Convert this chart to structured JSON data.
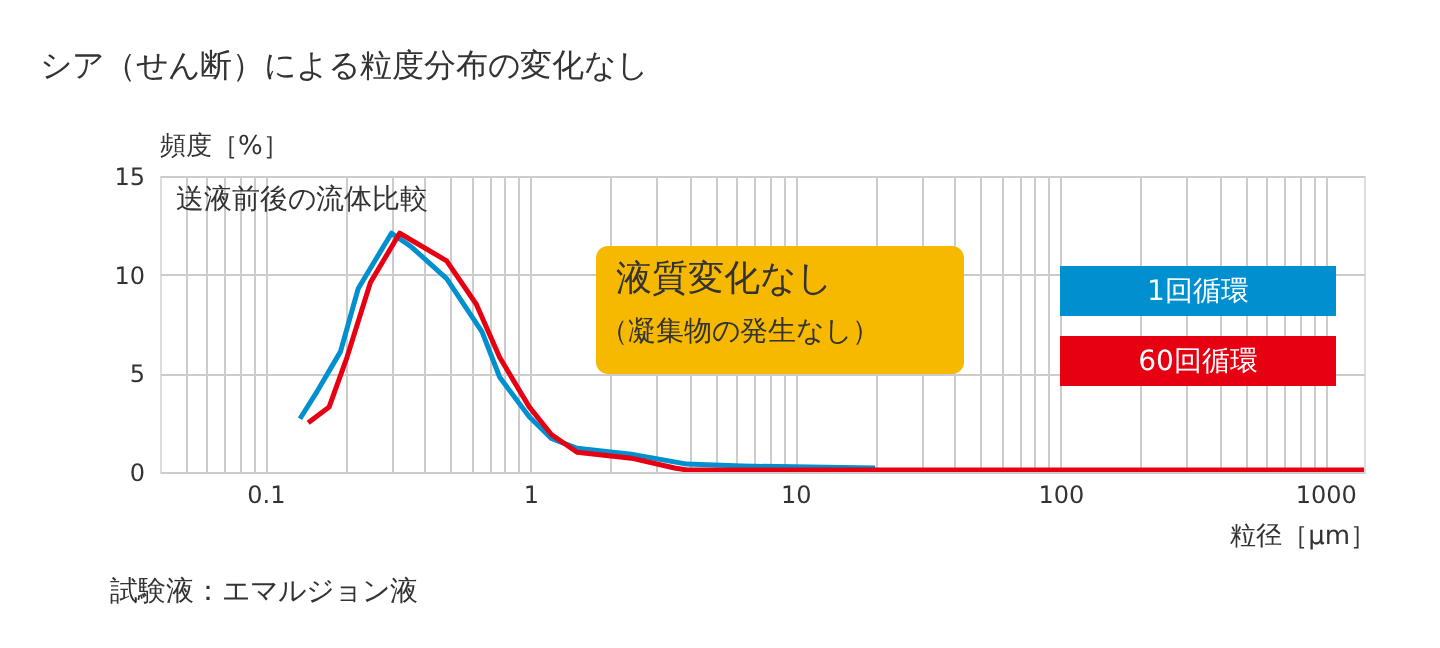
{
  "chart_data": {
    "type": "line",
    "title": "シア（せん断）による粒度分布の変化なし",
    "xlabel": "粒径［μm］",
    "ylabel": "頻度［%］",
    "log": "x",
    "xlim": [
      0.04,
      1400
    ],
    "ylim": [
      0,
      15
    ],
    "yticks": [
      0,
      5,
      10,
      15
    ],
    "xticks": [
      {
        "value": 0.05,
        "label": null
      },
      {
        "value": 0.06,
        "label": null
      },
      {
        "value": 0.07,
        "label": null
      },
      {
        "value": 0.08,
        "label": null
      },
      {
        "value": 0.09,
        "label": null
      },
      0.1,
      {
        "value": 0.2,
        "label": null
      },
      {
        "value": 0.3,
        "label": null
      },
      {
        "value": 0.4,
        "label": null
      },
      {
        "value": 0.5,
        "label": null
      },
      {
        "value": 0.6,
        "label": null
      },
      {
        "value": 0.7,
        "label": null
      },
      {
        "value": 0.8,
        "label": null
      },
      {
        "value": 0.9,
        "label": null
      },
      1,
      {
        "value": 2,
        "label": null
      },
      {
        "value": 3,
        "label": null
      },
      {
        "value": 4,
        "label": null
      },
      {
        "value": 5,
        "label": null
      },
      {
        "value": 6,
        "label": null
      },
      {
        "value": 7,
        "label": null
      },
      {
        "value": 8,
        "label": null
      },
      {
        "value": 9,
        "label": null
      },
      10,
      {
        "value": 20,
        "label": null
      },
      {
        "value": 30,
        "label": null
      },
      {
        "value": 40,
        "label": null
      },
      {
        "value": 50,
        "label": null
      },
      {
        "value": 60,
        "label": null
      },
      {
        "value": 70,
        "label": null
      },
      {
        "value": 80,
        "label": null
      },
      {
        "value": 90,
        "label": null
      },
      100,
      {
        "value": 200,
        "label": null
      },
      {
        "value": 300,
        "label": null
      },
      {
        "value": 400,
        "label": null
      },
      {
        "value": 500,
        "label": null
      },
      {
        "value": 600,
        "label": null
      },
      {
        "value": 700,
        "label": null
      },
      {
        "value": 800,
        "label": null
      },
      {
        "value": 900,
        "label": null
      },
      1000
    ],
    "grid": true,
    "legend": "right",
    "line_style": "solid",
    "marker": "none",
    "series": [
      {
        "name": "1回循環",
        "color": "#0090d0",
        "x": [
          0.135,
          0.157,
          0.192,
          0.224,
          0.299,
          0.356,
          0.483,
          0.657,
          0.766,
          0.99,
          1.2,
          1.5,
          2.4,
          3.9,
          6.3,
          20
        ],
        "values": [
          2.7,
          4.1,
          6.1,
          9.3,
          12.1,
          11.4,
          9.8,
          7.1,
          4.8,
          2.8,
          1.7,
          1.2,
          0.9,
          0.4,
          0.3,
          0.2
        ]
      },
      {
        "name": "60回循環",
        "color": "#e60012",
        "x": [
          0.145,
          0.174,
          0.203,
          0.249,
          0.321,
          0.483,
          0.625,
          0.766,
          0.99,
          1.2,
          1.5,
          2.4,
          3.5,
          3.9,
          20,
          100,
          1400
        ],
        "values": [
          2.5,
          3.3,
          5.8,
          9.6,
          12.1,
          10.7,
          8.5,
          5.8,
          3.3,
          1.9,
          1.0,
          0.7,
          0.2,
          0.1,
          0.1,
          0.1,
          0.1
        ]
      }
    ],
    "annotations": [
      "送液前後の流体比較",
      "液質変化なし",
      "（凝集物の発生なし）",
      "試験液：エマルジョン液"
    ]
  }
}
